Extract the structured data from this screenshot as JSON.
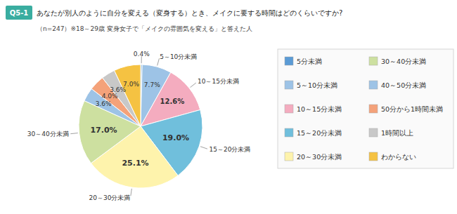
{
  "chart_data": {
    "type": "pie",
    "title": "あなたが別人のように自分を変える（変身する）とき、メイクに要する時間はどのくらいですか?",
    "subtitle": "（n=247）※18～29歳 変身女子で「メイクの雰囲気を変える」と答えた人",
    "categories": [
      "5分未満",
      "5～10分未満",
      "10～15分未満",
      "15～20分未満",
      "20～30分未満",
      "30～40分未満",
      "40～50分未満",
      "50分から1時間未満",
      "1時間以上",
      "わからない"
    ],
    "values": [
      0.4,
      7.7,
      12.6,
      19.0,
      25.1,
      17.0,
      3.6,
      4.0,
      3.6,
      7.0
    ],
    "value_labels": [
      "0.4%",
      "7.7%",
      "12.6%",
      "19.0%",
      "25.1%",
      "17.0%",
      "3.6%",
      "4.0%",
      "3.6%",
      "7.0%"
    ],
    "colors": [
      "#5b9bd5",
      "#9dc3e6",
      "#f4acbf",
      "#70bfdc",
      "#fef3ac",
      "#cde0a0",
      "#9dc3e6",
      "#f4a27a",
      "#c8c8c8",
      "#f5c242"
    ],
    "data_labels": true,
    "legend": "right",
    "annotations": [
      {
        "text": "Q5-1"
      },
      {
        "text": "5～10分未満",
        "category": 1
      },
      {
        "text": "10～15分未満",
        "category": 2
      },
      {
        "text": "15～20分未満",
        "category": 3
      },
      {
        "text": "20～30分未満",
        "category": 4
      },
      {
        "text": "30～40分未満",
        "category": 5
      }
    ]
  }
}
